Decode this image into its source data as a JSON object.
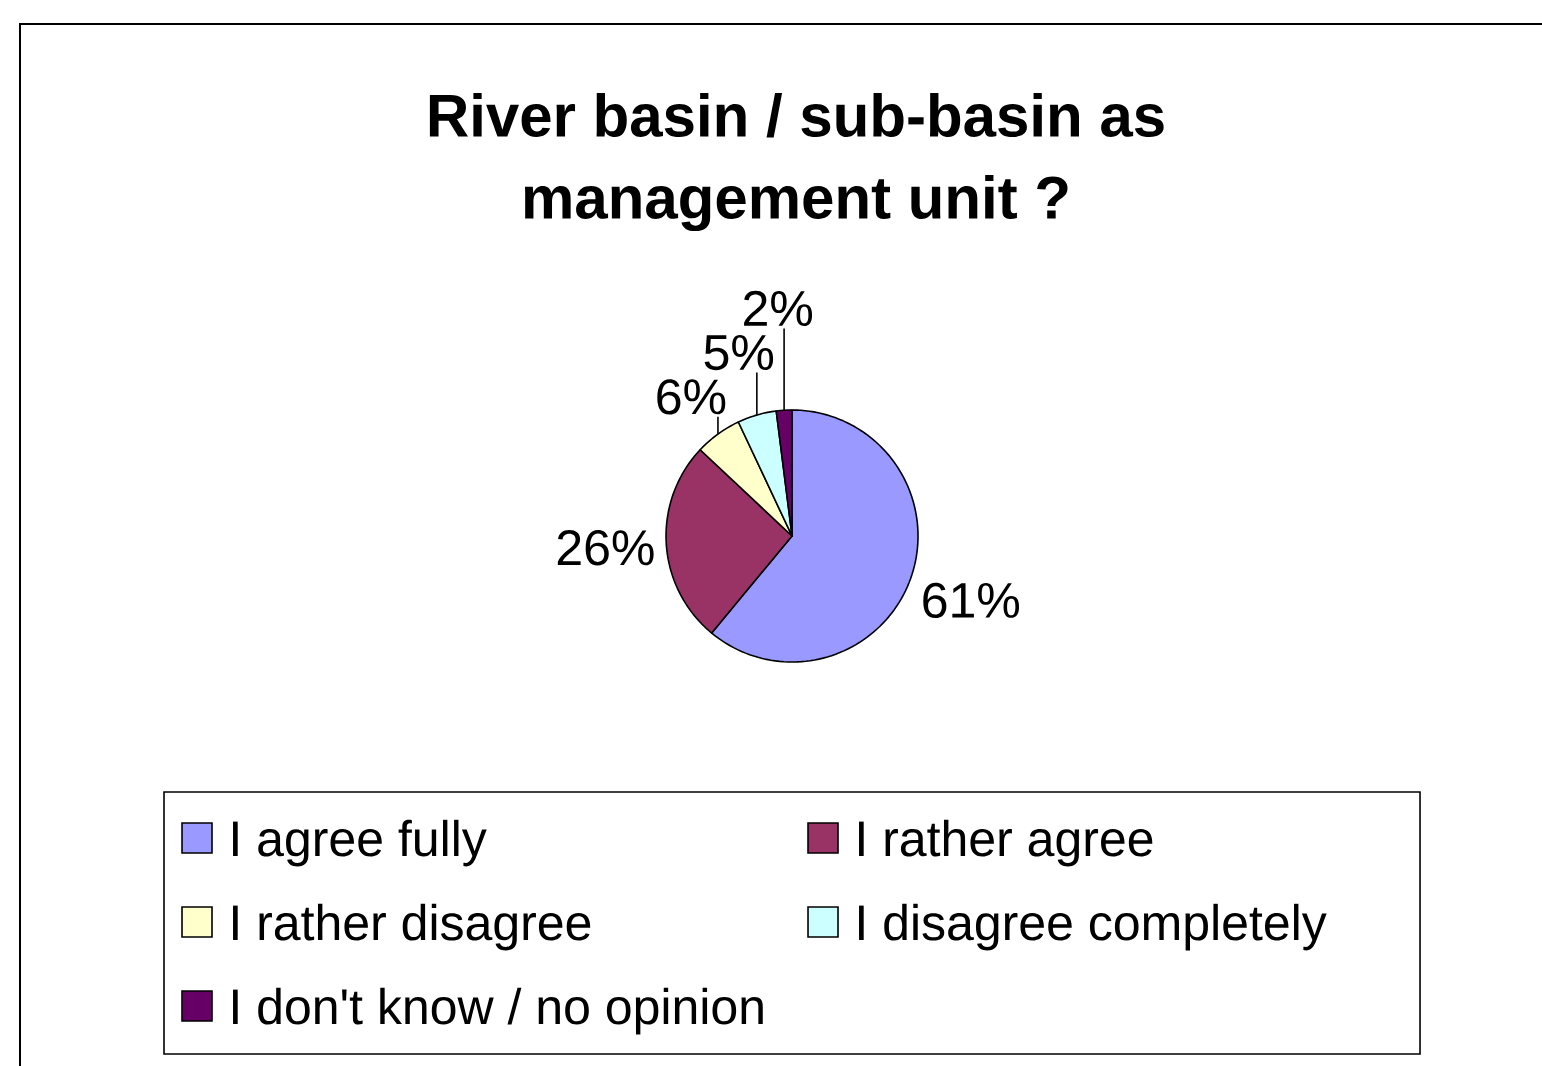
{
  "chart_data": {
    "type": "pie",
    "title": "River basin / sub-basin as management unit ?",
    "categories": [
      "I agree fully",
      "I rather agree",
      "I rather disagree",
      "I disagree completely",
      "I don't know / no opinion"
    ],
    "values": [
      61,
      26,
      6,
      5,
      2
    ],
    "colors": [
      "#9999ff",
      "#993366",
      "#ffffcc",
      "#ccffff",
      "#660066"
    ],
    "value_labels": [
      "61%",
      "26%",
      "6%",
      "5%",
      "2%"
    ],
    "legend": "bottom"
  }
}
